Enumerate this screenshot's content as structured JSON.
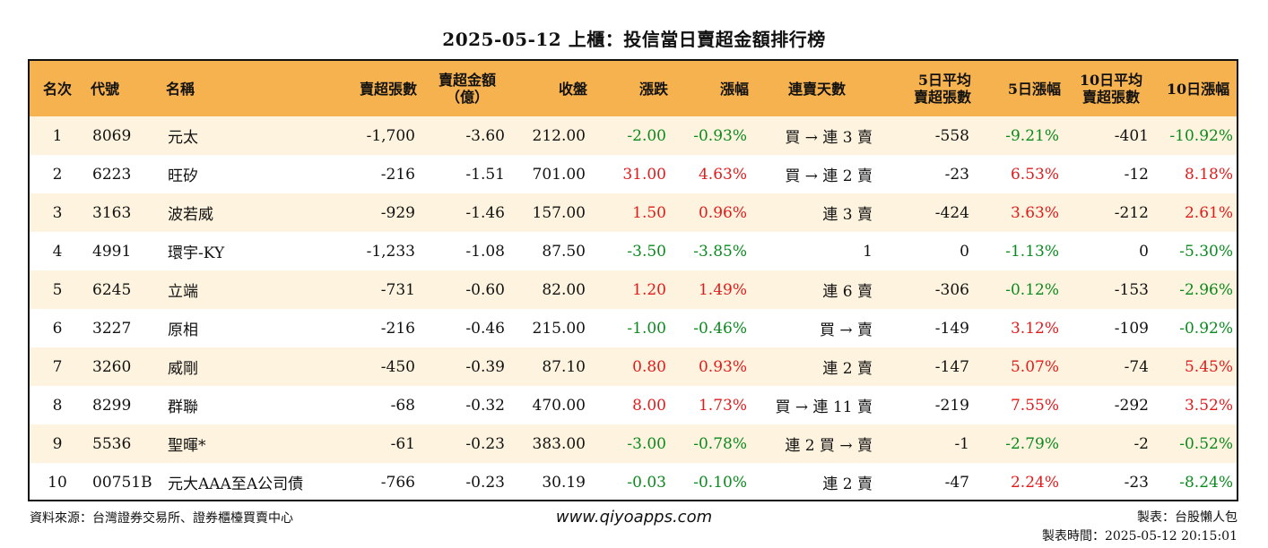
{
  "title": "2025-05-12 上櫃：投信當日賣超金額排行榜",
  "columns": [
    {
      "key": "rank",
      "label": "名次"
    },
    {
      "key": "code",
      "label": "代號"
    },
    {
      "key": "name",
      "label": "名稱"
    },
    {
      "key": "sell_shares",
      "label": "賣超張數"
    },
    {
      "key": "sell_amount",
      "label": "賣超金額\n（億）"
    },
    {
      "key": "close",
      "label": "收盤"
    },
    {
      "key": "change",
      "label": "漲跌"
    },
    {
      "key": "pct",
      "label": "漲幅"
    },
    {
      "key": "streak",
      "label": "連賣天數"
    },
    {
      "key": "avg5",
      "label": "5日平均\n賣超張數"
    },
    {
      "key": "pct5",
      "label": "5日漲幅"
    },
    {
      "key": "avg10",
      "label": "10日平均\n賣超張數"
    },
    {
      "key": "pct10",
      "label": "10日漲幅"
    }
  ],
  "rows": [
    {
      "rank": "1",
      "code": "8069",
      "name": "元太",
      "sell_shares": "-1,700",
      "sell_amount": "-3.60",
      "close": "212.00",
      "change": "-2.00",
      "pct": "-0.93%",
      "streak": "買 → 連 3 賣",
      "avg5": "-558",
      "pct5": "-9.21%",
      "avg10": "-401",
      "pct10": "-10.92%"
    },
    {
      "rank": "2",
      "code": "6223",
      "name": "旺矽",
      "sell_shares": "-216",
      "sell_amount": "-1.51",
      "close": "701.00",
      "change": "31.00",
      "pct": "4.63%",
      "streak": "買 → 連 2 賣",
      "avg5": "-23",
      "pct5": "6.53%",
      "avg10": "-12",
      "pct10": "8.18%"
    },
    {
      "rank": "3",
      "code": "3163",
      "name": "波若威",
      "sell_shares": "-929",
      "sell_amount": "-1.46",
      "close": "157.00",
      "change": "1.50",
      "pct": "0.96%",
      "streak": "連 3 賣",
      "avg5": "-424",
      "pct5": "3.63%",
      "avg10": "-212",
      "pct10": "2.61%"
    },
    {
      "rank": "4",
      "code": "4991",
      "name": "環宇-KY",
      "sell_shares": "-1,233",
      "sell_amount": "-1.08",
      "close": "87.50",
      "change": "-3.50",
      "pct": "-3.85%",
      "streak": "1",
      "avg5": "0",
      "pct5": "-1.13%",
      "avg10": "0",
      "pct10": "-5.30%"
    },
    {
      "rank": "5",
      "code": "6245",
      "name": "立端",
      "sell_shares": "-731",
      "sell_amount": "-0.60",
      "close": "82.00",
      "change": "1.20",
      "pct": "1.49%",
      "streak": "連 6 賣",
      "avg5": "-306",
      "pct5": "-0.12%",
      "avg10": "-153",
      "pct10": "-2.96%"
    },
    {
      "rank": "6",
      "code": "3227",
      "name": "原相",
      "sell_shares": "-216",
      "sell_amount": "-0.46",
      "close": "215.00",
      "change": "-1.00",
      "pct": "-0.46%",
      "streak": "買 → 賣",
      "avg5": "-149",
      "pct5": "3.12%",
      "avg10": "-109",
      "pct10": "-0.92%"
    },
    {
      "rank": "7",
      "code": "3260",
      "name": "威剛",
      "sell_shares": "-450",
      "sell_amount": "-0.39",
      "close": "87.10",
      "change": "0.80",
      "pct": "0.93%",
      "streak": "連 2 賣",
      "avg5": "-147",
      "pct5": "5.07%",
      "avg10": "-74",
      "pct10": "5.45%"
    },
    {
      "rank": "8",
      "code": "8299",
      "name": "群聯",
      "sell_shares": "-68",
      "sell_amount": "-0.32",
      "close": "470.00",
      "change": "8.00",
      "pct": "1.73%",
      "streak": "買 → 連 11 賣",
      "avg5": "-219",
      "pct5": "7.55%",
      "avg10": "-292",
      "pct10": "3.52%"
    },
    {
      "rank": "9",
      "code": "5536",
      "name": "聖暉*",
      "sell_shares": "-61",
      "sell_amount": "-0.23",
      "close": "383.00",
      "change": "-3.00",
      "pct": "-0.78%",
      "streak": "連 2 買 → 賣",
      "avg5": "-1",
      "pct5": "-2.79%",
      "avg10": "-2",
      "pct10": "-0.52%"
    },
    {
      "rank": "10",
      "code": "00751B",
      "name": "元大AAA至A公司債",
      "sell_shares": "-766",
      "sell_amount": "-0.23",
      "close": "30.19",
      "change": "-0.03",
      "pct": "-0.10%",
      "streak": "連 2 賣",
      "avg5": "-47",
      "pct5": "2.24%",
      "avg10": "-23",
      "pct10": "-8.24%"
    }
  ],
  "footer": {
    "source": "資料來源：台灣證券交易所、證券櫃檯買賣中心",
    "website": "www.qiyoapps.com",
    "author": "製表：台股懶人包",
    "time": "製表時間：2025-05-12 20:15:01"
  },
  "colors": {
    "header_bg": "#f6b24f",
    "stripe": "#fef3de",
    "up": "#e01b1b",
    "down": "#0a8a1e"
  }
}
